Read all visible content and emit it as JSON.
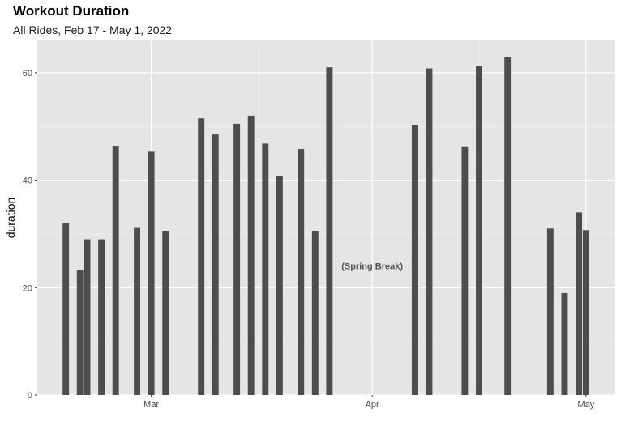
{
  "chart_data": {
    "type": "bar",
    "title": "Workout Duration",
    "subtitle": "All Rides, Feb 17 - May 1, 2022",
    "xlabel": "",
    "ylabel": "duration",
    "x_axis": {
      "type": "date",
      "range": [
        "2022-02-13",
        "2022-05-05"
      ],
      "major_ticks": [
        {
          "date": "2022-03-01",
          "label": "Mar"
        },
        {
          "date": "2022-04-01",
          "label": "Apr"
        },
        {
          "date": "2022-05-01",
          "label": "May"
        }
      ],
      "minor_gridlines": [
        "2022-03-16",
        "2022-04-16"
      ]
    },
    "y_axis": {
      "range": [
        0,
        66
      ],
      "ticks": [
        0,
        20,
        40,
        60
      ],
      "minor_gridlines": [
        10,
        30,
        50
      ]
    },
    "grid": true,
    "bar_color": "#4d4d4d",
    "panel_color": "#e5e5e5",
    "annotations": [
      {
        "text": "(Spring Break)",
        "date": "2022-04-01",
        "y": 24
      }
    ],
    "points": [
      {
        "date": "2022-02-17",
        "value": 32
      },
      {
        "date": "2022-02-19",
        "value": 23.2
      },
      {
        "date": "2022-02-20",
        "value": 29
      },
      {
        "date": "2022-02-22",
        "value": 29
      },
      {
        "date": "2022-02-24",
        "value": 46.4
      },
      {
        "date": "2022-02-27",
        "value": 31.1
      },
      {
        "date": "2022-03-01",
        "value": 45.3
      },
      {
        "date": "2022-03-03",
        "value": 30.5
      },
      {
        "date": "2022-03-08",
        "value": 51.5
      },
      {
        "date": "2022-03-10",
        "value": 48.5
      },
      {
        "date": "2022-03-13",
        "value": 50.5
      },
      {
        "date": "2022-03-15",
        "value": 52
      },
      {
        "date": "2022-03-17",
        "value": 46.8
      },
      {
        "date": "2022-03-19",
        "value": 40.7
      },
      {
        "date": "2022-03-22",
        "value": 45.8
      },
      {
        "date": "2022-03-24",
        "value": 30.5
      },
      {
        "date": "2022-03-26",
        "value": 61
      },
      {
        "date": "2022-04-07",
        "value": 50.3
      },
      {
        "date": "2022-04-09",
        "value": 60.8
      },
      {
        "date": "2022-04-14",
        "value": 46.3
      },
      {
        "date": "2022-04-16",
        "value": 61.2
      },
      {
        "date": "2022-04-20",
        "value": 62.9
      },
      {
        "date": "2022-04-26",
        "value": 31
      },
      {
        "date": "2022-04-28",
        "value": 19
      },
      {
        "date": "2022-04-30",
        "value": 34
      },
      {
        "date": "2022-05-01",
        "value": 30.7
      }
    ]
  }
}
